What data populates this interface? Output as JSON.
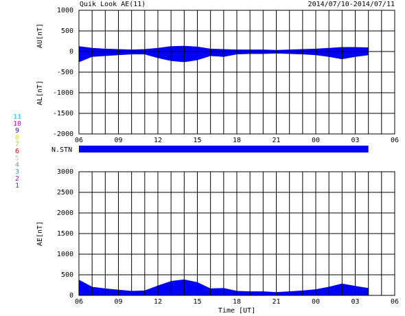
{
  "chart_data": [
    {
      "type": "area",
      "title": "Quik Look AE(11)",
      "date_range": "2014/07/10-2014/07/11",
      "ylabel_upper": "AU[nT]",
      "ylabel_lower": "AL[nT]",
      "x": [
        0,
        1,
        2,
        3,
        4,
        5,
        6,
        7,
        8,
        9,
        10,
        11,
        12,
        13,
        14,
        15,
        16,
        17,
        18,
        19,
        20,
        21,
        22
      ],
      "series": [
        {
          "name": "AU",
          "color": "#0000ff",
          "values": [
            120,
            80,
            60,
            50,
            40,
            50,
            80,
            120,
            130,
            110,
            60,
            50,
            40,
            40,
            40,
            30,
            40,
            50,
            60,
            80,
            100,
            100,
            90
          ]
        },
        {
          "name": "AL",
          "color": "#0000ff",
          "values": [
            -250,
            -120,
            -100,
            -80,
            -60,
            -60,
            -150,
            -220,
            -250,
            -200,
            -100,
            -120,
            -60,
            -50,
            -50,
            -40,
            -50,
            -60,
            -80,
            -120,
            -180,
            -120,
            -80
          ]
        }
      ],
      "xlim": [
        0,
        24
      ],
      "xticks": [
        {
          "value": 0,
          "label": "06"
        },
        {
          "value": 3,
          "label": "09"
        },
        {
          "value": 6,
          "label": "12"
        },
        {
          "value": 9,
          "label": "15"
        },
        {
          "value": 12,
          "label": "18"
        },
        {
          "value": 15,
          "label": "21"
        },
        {
          "value": 18,
          "label": "00"
        },
        {
          "value": 21,
          "label": "03"
        },
        {
          "value": 24,
          "label": "06"
        }
      ],
      "xgrid": [
        0,
        1,
        2,
        3,
        4,
        5,
        6,
        7,
        8,
        9,
        10,
        11,
        12,
        13,
        14,
        15,
        16,
        17,
        18,
        19,
        20,
        21,
        22,
        23,
        24
      ],
      "ylim": [
        -2000,
        1000
      ],
      "yticks": [
        1000,
        500,
        0,
        -500,
        -1000,
        -1500,
        -2000
      ]
    },
    {
      "type": "coverage",
      "label": "N.STN",
      "x": [
        0,
        22
      ],
      "color": "#0000ff",
      "xlim": [
        0,
        24
      ]
    },
    {
      "type": "area",
      "ylabel": "AE[nT]",
      "xlabel": "Time [UT]",
      "x": [
        0,
        1,
        2,
        3,
        4,
        5,
        6,
        7,
        8,
        9,
        10,
        11,
        12,
        13,
        14,
        15,
        16,
        17,
        18,
        19,
        20,
        21,
        22
      ],
      "series": [
        {
          "name": "AE",
          "color": "#0000ff",
          "values": [
            370,
            200,
            160,
            130,
            100,
            110,
            230,
            340,
            380,
            310,
            160,
            170,
            100,
            90,
            90,
            70,
            90,
            110,
            140,
            200,
            280,
            220,
            170
          ]
        }
      ],
      "xlim": [
        0,
        24
      ],
      "xticks": [
        {
          "value": 0,
          "label": "06"
        },
        {
          "value": 3,
          "label": "09"
        },
        {
          "value": 6,
          "label": "12"
        },
        {
          "value": 9,
          "label": "15"
        },
        {
          "value": 12,
          "label": "18"
        },
        {
          "value": 15,
          "label": "21"
        },
        {
          "value": 18,
          "label": "00"
        },
        {
          "value": 21,
          "label": "03"
        },
        {
          "value": 24,
          "label": "06"
        }
      ],
      "xgrid": [
        0,
        1,
        2,
        3,
        4,
        5,
        6,
        7,
        8,
        9,
        10,
        11,
        12,
        13,
        14,
        15,
        16,
        17,
        18,
        19,
        20,
        21,
        22,
        23,
        24
      ],
      "ylim": [
        0,
        3000
      ],
      "yticks": [
        3000,
        2500,
        2000,
        1500,
        1000,
        500,
        0
      ]
    },
    {
      "type": "legend",
      "stations": [
        {
          "name": "11",
          "color": "#00d8d8"
        },
        {
          "name": "10",
          "color": "#e000e0"
        },
        {
          "name": "9",
          "color": "#2020c0"
        },
        {
          "name": "8",
          "color": "#e8e000"
        },
        {
          "name": "7",
          "color": "#a0d040"
        },
        {
          "name": "6",
          "color": "#e00000"
        },
        {
          "name": "5",
          "color": "#c8c8c8"
        },
        {
          "name": "4",
          "color": "#909090"
        },
        {
          "name": "3",
          "color": "#30a0a0"
        },
        {
          "name": "2",
          "color": "#a020a0"
        },
        {
          "name": "1",
          "color": "#2040c0"
        }
      ]
    }
  ]
}
